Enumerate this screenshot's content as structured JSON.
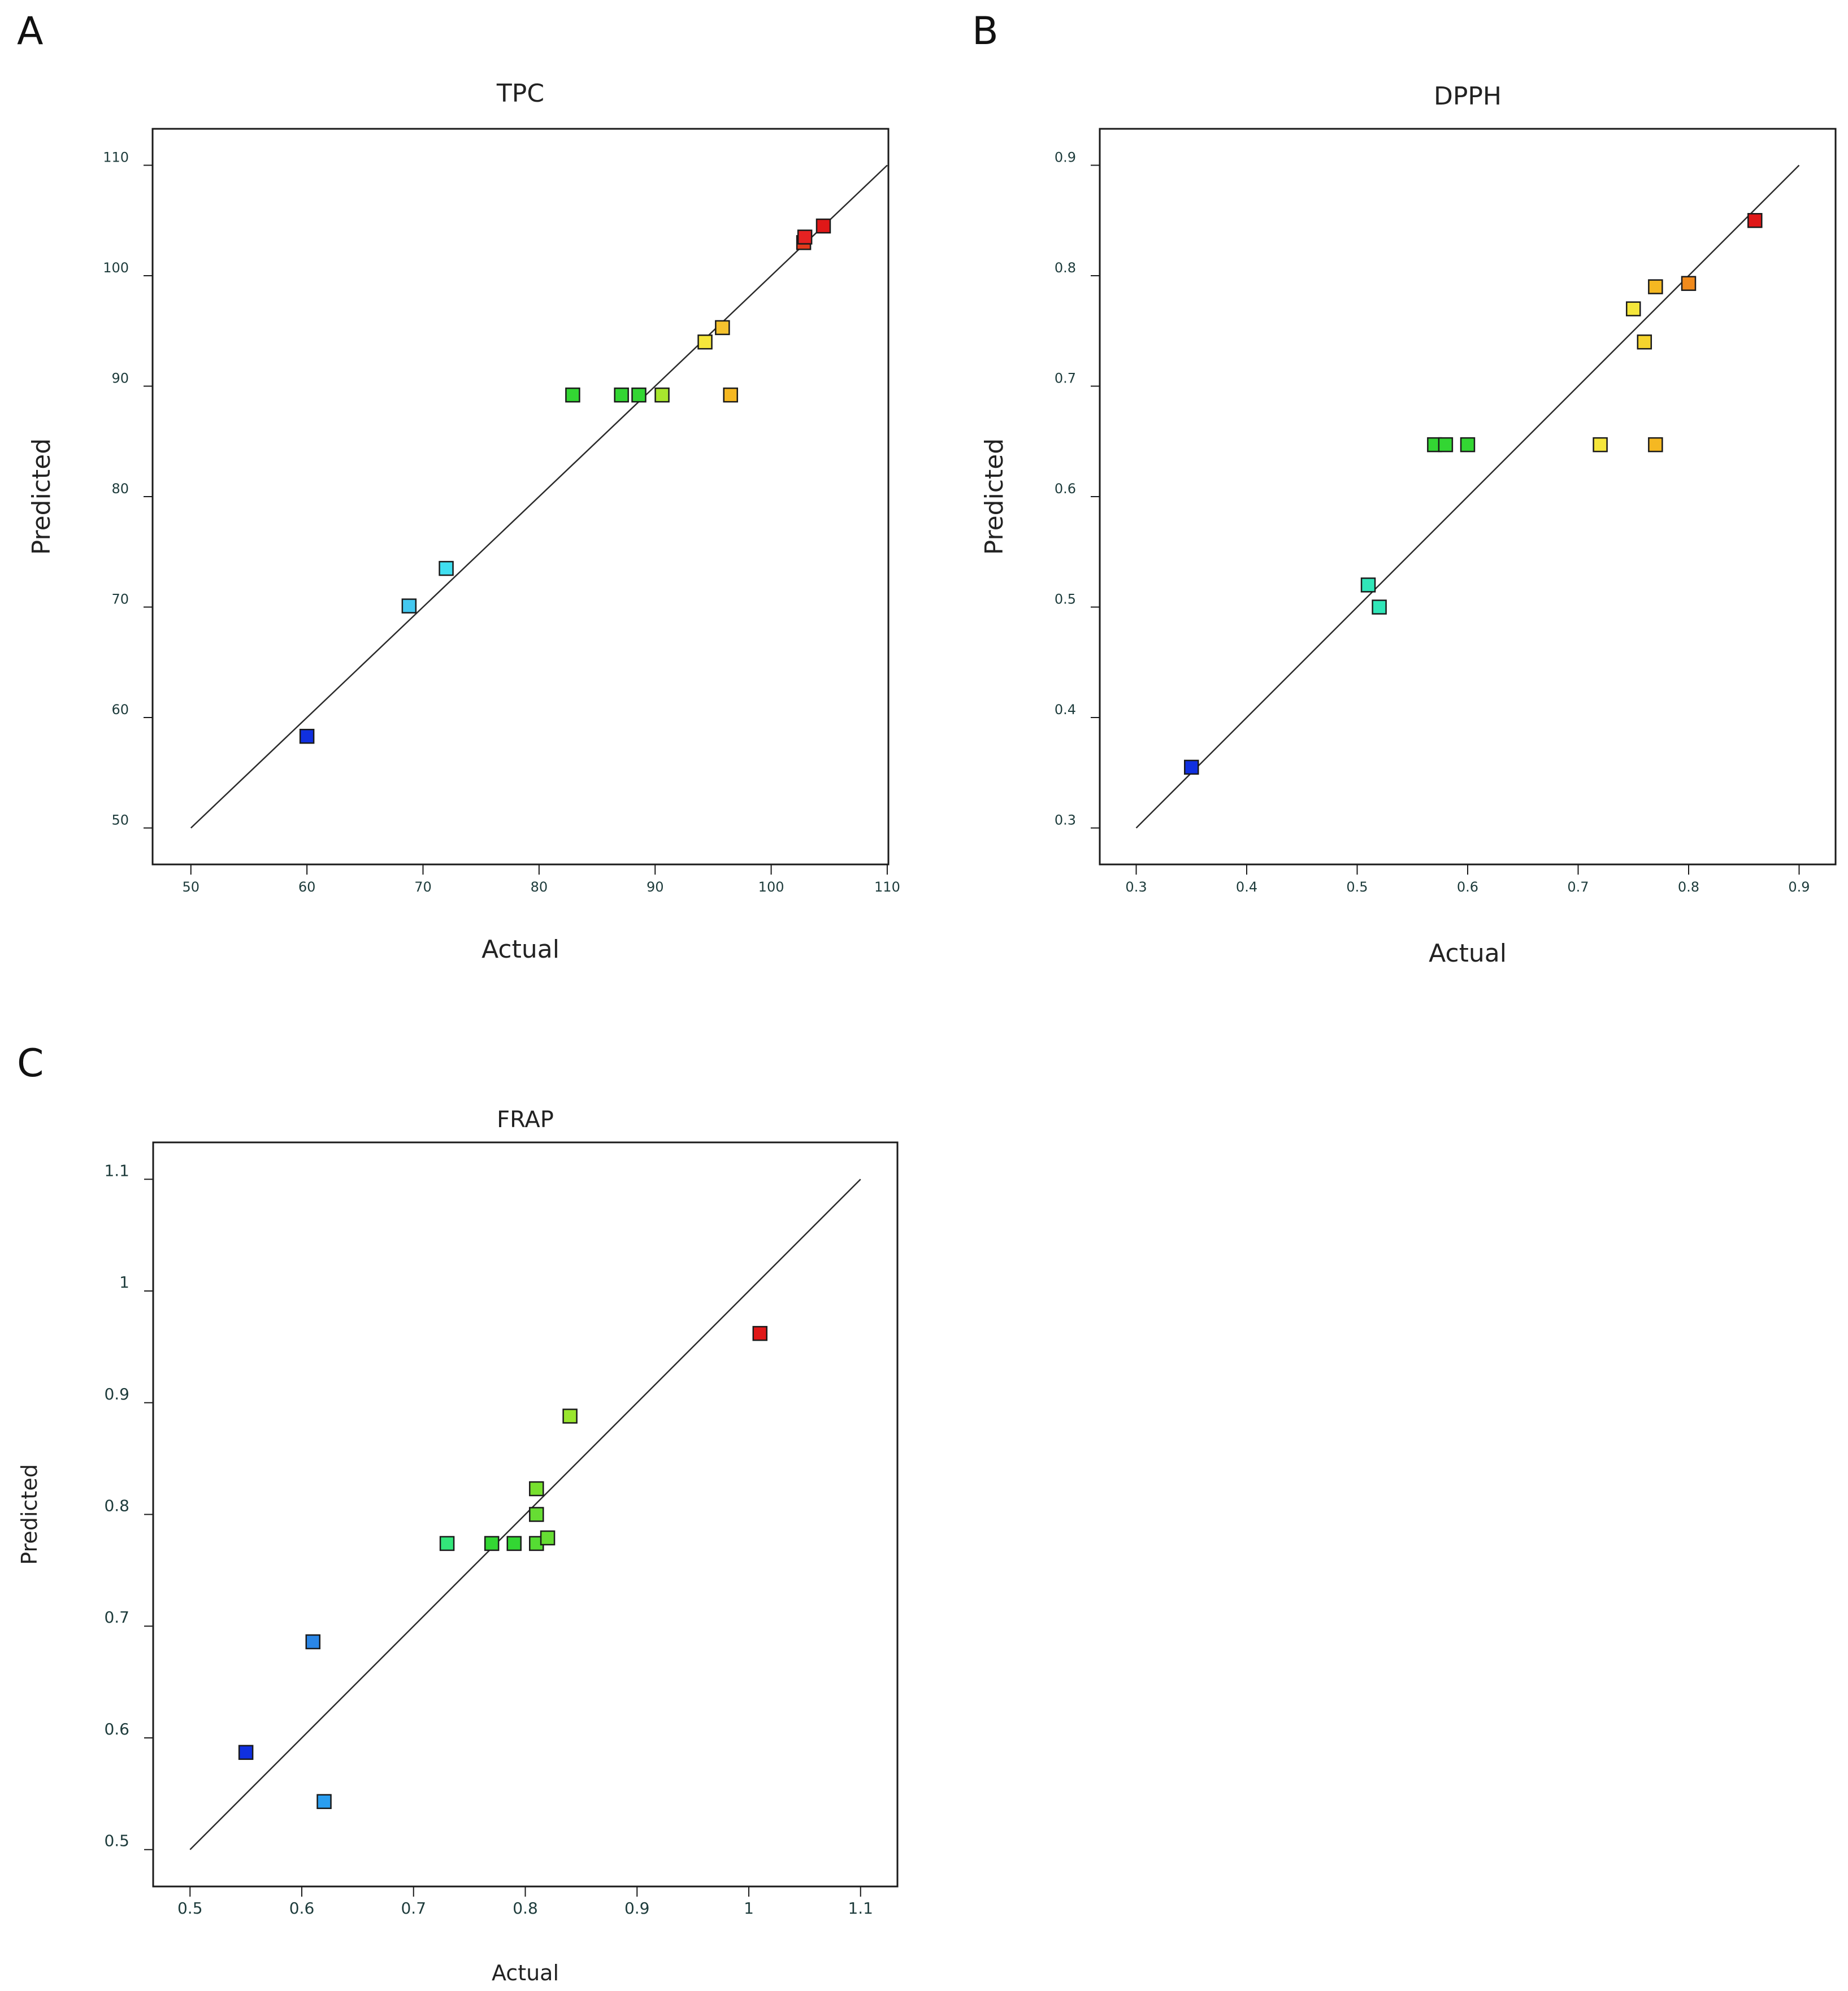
{
  "figure": {
    "panel_letters": [
      "A",
      "B",
      "C"
    ]
  },
  "colors": {
    "frame": "#1a1a1a",
    "text": "#222222",
    "tick_text": "#1d3b3b"
  },
  "chart_data": [
    {
      "type": "scatter",
      "panel": "A",
      "title": "TPC",
      "xlabel": "Actual",
      "ylabel": "Predicted",
      "xlim": [
        46.7,
        110.1
      ],
      "ylim": [
        46.7,
        113.3
      ],
      "xticks": [
        50,
        60,
        70,
        80,
        90,
        100,
        110
      ],
      "yticks": [
        50,
        60,
        70,
        80,
        90,
        100,
        110
      ],
      "xtick_labels": [
        "50",
        "60",
        "70",
        "80",
        "90",
        "100",
        "110"
      ],
      "ytick_labels": [
        "50",
        "60",
        "70",
        "80",
        "90",
        "100",
        "110"
      ],
      "reference_line": [
        50,
        110
      ],
      "points": [
        {
          "x": 60.0,
          "y": 58.3,
          "color": "#1030e0"
        },
        {
          "x": 68.8,
          "y": 70.1,
          "color": "#44c8f0"
        },
        {
          "x": 72.0,
          "y": 73.5,
          "color": "#40dff0"
        },
        {
          "x": 82.9,
          "y": 89.2,
          "color": "#33d633"
        },
        {
          "x": 87.1,
          "y": 89.2,
          "color": "#33d633"
        },
        {
          "x": 88.6,
          "y": 89.2,
          "color": "#33d633"
        },
        {
          "x": 90.6,
          "y": 89.2,
          "color": "#a8e62e"
        },
        {
          "x": 94.3,
          "y": 94.0,
          "color": "#f5e63b"
        },
        {
          "x": 95.8,
          "y": 95.3,
          "color": "#f5c22e"
        },
        {
          "x": 96.5,
          "y": 89.2,
          "color": "#f5b822"
        },
        {
          "x": 102.8,
          "y": 103.0,
          "color": "#e23a1c"
        },
        {
          "x": 102.9,
          "y": 103.5,
          "color": "#e52222"
        },
        {
          "x": 104.5,
          "y": 104.5,
          "color": "#e01818"
        }
      ]
    },
    {
      "type": "scatter",
      "panel": "B",
      "title": "DPPH",
      "xlabel": "Actual",
      "ylabel": "Predicted",
      "xlim": [
        0.267,
        0.933
      ],
      "ylim": [
        0.267,
        0.933
      ],
      "xticks": [
        0.3,
        0.4,
        0.5,
        0.6,
        0.7,
        0.8,
        0.9
      ],
      "yticks": [
        0.3,
        0.4,
        0.5,
        0.6,
        0.7,
        0.8,
        0.9
      ],
      "xtick_labels": [
        "0.3",
        "0.4",
        "0.5",
        "0.6",
        "0.7",
        "0.8",
        "0.9"
      ],
      "ytick_labels": [
        "0.3",
        "0.4",
        "0.5",
        "0.6",
        "0.7",
        "0.8",
        "0.9"
      ],
      "reference_line": [
        0.3,
        0.9
      ],
      "points": [
        {
          "x": 0.35,
          "y": 0.355,
          "color": "#1030e0"
        },
        {
          "x": 0.51,
          "y": 0.52,
          "color": "#30e6b8"
        },
        {
          "x": 0.52,
          "y": 0.5,
          "color": "#30e6b8"
        },
        {
          "x": 0.57,
          "y": 0.647,
          "color": "#33d633"
        },
        {
          "x": 0.58,
          "y": 0.647,
          "color": "#33d633"
        },
        {
          "x": 0.6,
          "y": 0.647,
          "color": "#33d633"
        },
        {
          "x": 0.72,
          "y": 0.647,
          "color": "#f5e63b"
        },
        {
          "x": 0.75,
          "y": 0.77,
          "color": "#f5e63b"
        },
        {
          "x": 0.76,
          "y": 0.74,
          "color": "#f5d42e"
        },
        {
          "x": 0.77,
          "y": 0.79,
          "color": "#f5b822"
        },
        {
          "x": 0.77,
          "y": 0.647,
          "color": "#f5b822"
        },
        {
          "x": 0.8,
          "y": 0.793,
          "color": "#f08a1c"
        },
        {
          "x": 0.86,
          "y": 0.85,
          "color": "#e01818"
        }
      ]
    },
    {
      "type": "scatter",
      "panel": "C",
      "title": "FRAP",
      "xlabel": "Actual",
      "ylabel": "Predicted",
      "xlim": [
        0.467,
        1.133
      ],
      "ylim": [
        0.467,
        1.133
      ],
      "xticks": [
        0.5,
        0.6,
        0.7,
        0.8,
        0.9,
        1.0,
        1.1
      ],
      "yticks": [
        0.5,
        0.6,
        0.7,
        0.8,
        0.9,
        1.0,
        1.1
      ],
      "xtick_labels": [
        "0.5",
        "0.6",
        "0.7",
        "0.8",
        "0.9",
        "1",
        "1.1"
      ],
      "ytick_labels": [
        "0.5",
        "0.6",
        "0.7",
        "0.8",
        "0.9",
        "1",
        "1.1"
      ],
      "reference_line": [
        0.5,
        1.1
      ],
      "points": [
        {
          "x": 0.55,
          "y": 0.587,
          "color": "#1030e0"
        },
        {
          "x": 0.61,
          "y": 0.686,
          "color": "#2a86e6"
        },
        {
          "x": 0.62,
          "y": 0.543,
          "color": "#2a9ef0"
        },
        {
          "x": 0.73,
          "y": 0.774,
          "color": "#33e67a"
        },
        {
          "x": 0.77,
          "y": 0.774,
          "color": "#33d633"
        },
        {
          "x": 0.79,
          "y": 0.774,
          "color": "#33d633"
        },
        {
          "x": 0.81,
          "y": 0.774,
          "color": "#55dd33"
        },
        {
          "x": 0.82,
          "y": 0.779,
          "color": "#66dd33"
        },
        {
          "x": 0.81,
          "y": 0.8,
          "color": "#66dd33"
        },
        {
          "x": 0.81,
          "y": 0.823,
          "color": "#77e02e"
        },
        {
          "x": 0.84,
          "y": 0.888,
          "color": "#99e62e"
        },
        {
          "x": 1.01,
          "y": 0.962,
          "color": "#e01818"
        }
      ]
    }
  ]
}
